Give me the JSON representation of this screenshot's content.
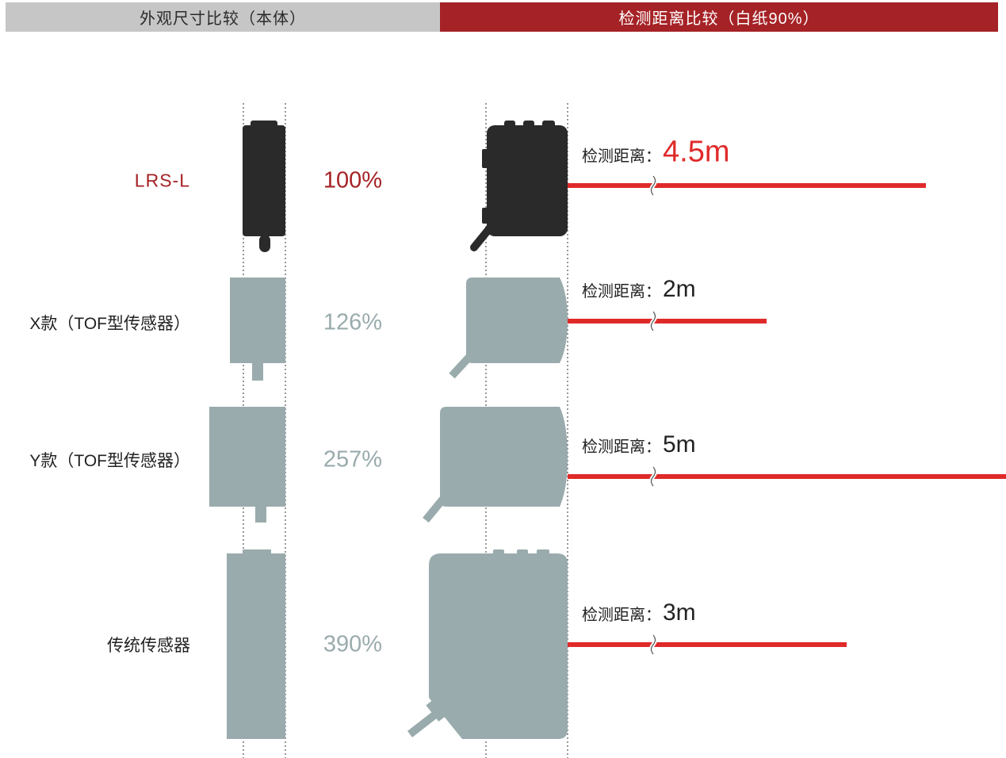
{
  "header": {
    "left_title": "外观尺寸比较（本体）",
    "right_title": "检测距离比较（白纸90%）"
  },
  "colors": {
    "accent": "#a52226",
    "laser": "#e02a2a",
    "product": "#2a2a2a",
    "competitor": "#9aabad"
  },
  "range_label": "检测距离：",
  "rows": [
    {
      "name": "LRS-L",
      "percent": "100%",
      "range": "4.5m",
      "range_m": 4.5,
      "highlight": true
    },
    {
      "name": "X款（TOF型传感器）",
      "percent": "126%",
      "range": "2m",
      "range_m": 2,
      "highlight": false
    },
    {
      "name": "Y款（TOF型传感器）",
      "percent": "257%",
      "range": "5m",
      "range_m": 5,
      "highlight": false
    },
    {
      "name": "传统传感器",
      "percent": "390%",
      "range": "3m",
      "range_m": 3,
      "highlight": false
    }
  ]
}
